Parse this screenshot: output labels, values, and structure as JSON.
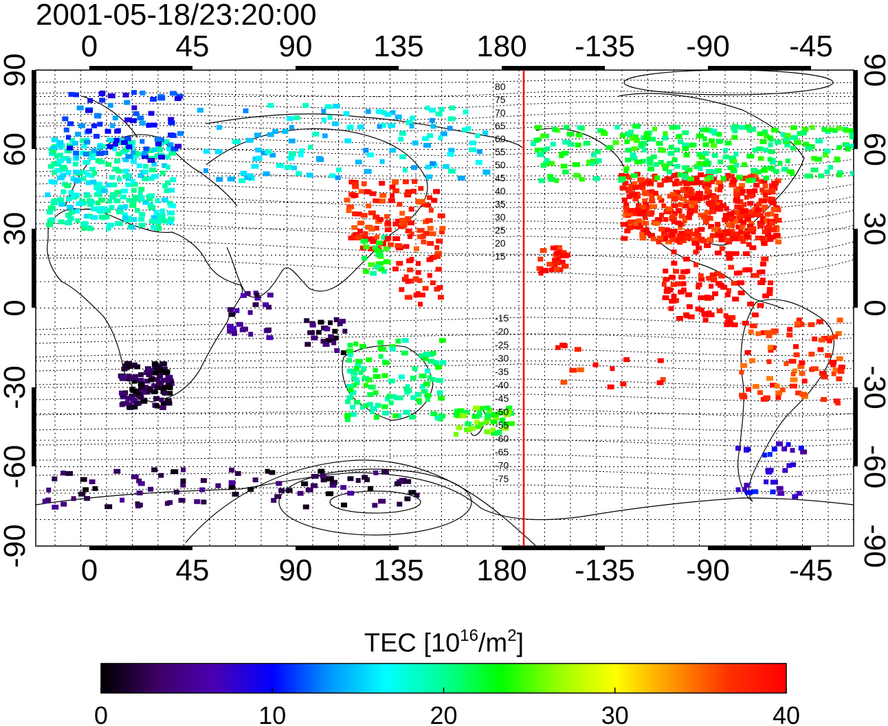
{
  "timestamp": "2001-05-18/23:20:00",
  "map": {
    "top_lon_ticks": [
      "0",
      "45",
      "90",
      "135",
      "180",
      "-135",
      "-90",
      "-45"
    ],
    "bottom_lon_ticks": [
      "0",
      "45",
      "90",
      "135",
      "180",
      "-135",
      "-90",
      "-45"
    ],
    "lat_ticks": [
      "90",
      "60",
      "30",
      "0",
      "-30",
      "-60",
      "-90"
    ],
    "terminator_color": "#ff0000",
    "contour_labels_north": [
      "80",
      "75",
      "70",
      "65",
      "60",
      "55",
      "50",
      "45",
      "40",
      "35",
      "30",
      "25",
      "20",
      "15"
    ],
    "contour_labels_south": [
      "-15",
      "-20",
      "-25",
      "-30",
      "-35",
      "-40",
      "-45",
      "-50",
      "-55",
      "-60",
      "-65",
      "-70",
      "-75"
    ],
    "tec_regions": [
      {
        "name": "europe",
        "tec": 18
      },
      {
        "name": "europe-north",
        "tec": 11
      },
      {
        "name": "siberia",
        "tec": 16
      },
      {
        "name": "japan",
        "tec": 38
      },
      {
        "name": "east-asia-coast",
        "tec": 22
      },
      {
        "name": "west-pacific",
        "tec": 39
      },
      {
        "name": "southeast-asia",
        "tec": 3
      },
      {
        "name": "indian-ocean",
        "tec": 4
      },
      {
        "name": "australia",
        "tec": 21
      },
      {
        "name": "new-zealand",
        "tec": 24
      },
      {
        "name": "south-africa",
        "tec": 2
      },
      {
        "name": "antarctic-coast",
        "tec": 3
      },
      {
        "name": "hawaii",
        "tec": 39
      },
      {
        "name": "north-america",
        "tec": 38
      },
      {
        "name": "canada",
        "tec": 22
      },
      {
        "name": "central-america",
        "tec": 40
      },
      {
        "name": "south-america",
        "tec": 37
      },
      {
        "name": "south-pacific",
        "tec": 38
      },
      {
        "name": "patagonia",
        "tec": 8
      }
    ]
  },
  "colorbar": {
    "title_prefix": "TEC  [10",
    "title_exp": "16",
    "title_unit": "/m",
    "title_unit_exp": "2",
    "title_suffix": "]",
    "ticks": [
      "0",
      "10",
      "20",
      "30",
      "40"
    ],
    "min": 0,
    "max": 40,
    "stops": [
      "#000000",
      "#3d0066",
      "#4b00b4",
      "#0000ff",
      "#0096ff",
      "#00ffff",
      "#00ff96",
      "#00ff00",
      "#96ff00",
      "#ffff00",
      "#ff9600",
      "#ff3000",
      "#ff0000"
    ]
  }
}
